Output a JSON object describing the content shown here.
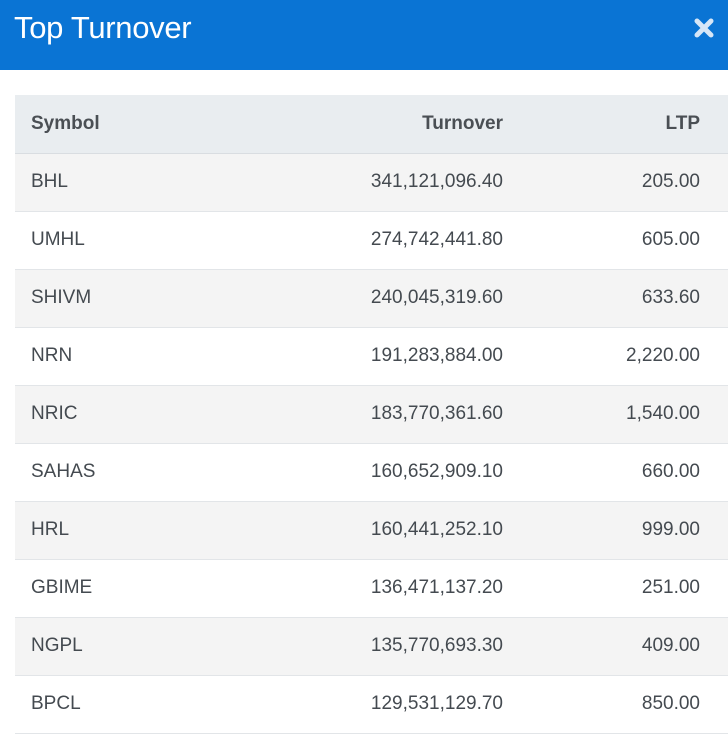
{
  "header": {
    "title": "Top Turnover",
    "close_icon": "close-icon",
    "background": "#0a74d4"
  },
  "table": {
    "columns": [
      "Symbol",
      "Turnover",
      "LTP"
    ],
    "rows": [
      {
        "symbol": "BHL",
        "turnover": "341,121,096.40",
        "ltp": "205.00"
      },
      {
        "symbol": "UMHL",
        "turnover": "274,742,441.80",
        "ltp": "605.00"
      },
      {
        "symbol": "SHIVM",
        "turnover": "240,045,319.60",
        "ltp": "633.60"
      },
      {
        "symbol": "NRN",
        "turnover": "191,283,884.00",
        "ltp": "2,220.00"
      },
      {
        "symbol": "NRIC",
        "turnover": "183,770,361.60",
        "ltp": "1,540.00"
      },
      {
        "symbol": "SAHAS",
        "turnover": "160,652,909.10",
        "ltp": "660.00"
      },
      {
        "symbol": "HRL",
        "turnover": "160,441,252.10",
        "ltp": "999.00"
      },
      {
        "symbol": "GBIME",
        "turnover": "136,471,137.20",
        "ltp": "251.00"
      },
      {
        "symbol": "NGPL",
        "turnover": "135,770,693.30",
        "ltp": "409.00"
      },
      {
        "symbol": "BPCL",
        "turnover": "129,531,129.70",
        "ltp": "850.00"
      }
    ]
  }
}
